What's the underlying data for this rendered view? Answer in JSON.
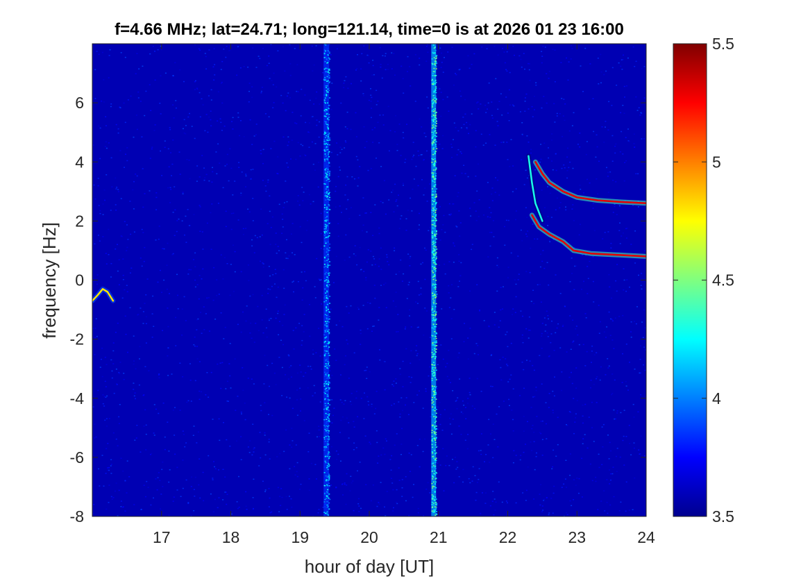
{
  "chart_data": {
    "type": "heatmap",
    "title": "f=4.66 MHz;  lat=24.71; long=121.14, time=0 is at 2026 01 23 16:00",
    "xlabel": "hour of day [UT]",
    "ylabel": "frequency [Hz]",
    "xlim": [
      16.0,
      24.0
    ],
    "ylim": [
      -8.0,
      8.0
    ],
    "xticks": [
      17,
      18,
      19,
      20,
      21,
      22,
      23,
      24
    ],
    "xtick_labels": [
      "17",
      "18",
      "19",
      "20",
      "21",
      "22",
      "23",
      "24"
    ],
    "yticks": [
      -8,
      -6,
      -4,
      -2,
      0,
      2,
      4,
      6
    ],
    "ytick_labels": [
      "-8",
      "-6",
      "-4",
      "-2",
      "0",
      "2",
      "4",
      "6"
    ],
    "colorbar": {
      "colormap": "jet",
      "range": [
        3.5,
        5.5
      ],
      "ticks": [
        3.5,
        4,
        4.5,
        5,
        5.5
      ],
      "tick_labels": [
        "3.5",
        "4",
        "4.5",
        "5",
        "5.5"
      ]
    },
    "background_level": 3.6,
    "broadband_bands": [
      {
        "x_center": 19.38,
        "width": 0.08,
        "level": 4.05
      },
      {
        "x_center": 20.93,
        "width": 0.07,
        "level": 4.3
      }
    ],
    "traces": [
      {
        "name": "",
        "level": 5.3,
        "points": [
          [
            22.4,
            4.0
          ],
          [
            22.5,
            3.6
          ],
          [
            22.6,
            3.3
          ],
          [
            22.8,
            3.0
          ],
          [
            23.0,
            2.8
          ],
          [
            23.3,
            2.7
          ],
          [
            23.6,
            2.65
          ],
          [
            24.0,
            2.6
          ]
        ]
      },
      {
        "name": "",
        "level": 5.3,
        "points": [
          [
            22.35,
            2.2
          ],
          [
            22.45,
            1.8
          ],
          [
            22.6,
            1.55
          ],
          [
            22.8,
            1.3
          ],
          [
            22.95,
            1.0
          ],
          [
            23.2,
            0.9
          ],
          [
            23.6,
            0.85
          ],
          [
            24.0,
            0.8
          ]
        ]
      },
      {
        "name": "",
        "level": 4.3,
        "points": [
          [
            22.3,
            4.2
          ],
          [
            22.35,
            3.3
          ],
          [
            22.4,
            2.6
          ],
          [
            22.5,
            2.0
          ]
        ]
      },
      {
        "name": "",
        "level": 4.8,
        "points": [
          [
            16.0,
            -0.7
          ],
          [
            16.08,
            -0.5
          ],
          [
            16.15,
            -0.3
          ],
          [
            16.22,
            -0.4
          ],
          [
            16.3,
            -0.7
          ]
        ]
      }
    ]
  }
}
